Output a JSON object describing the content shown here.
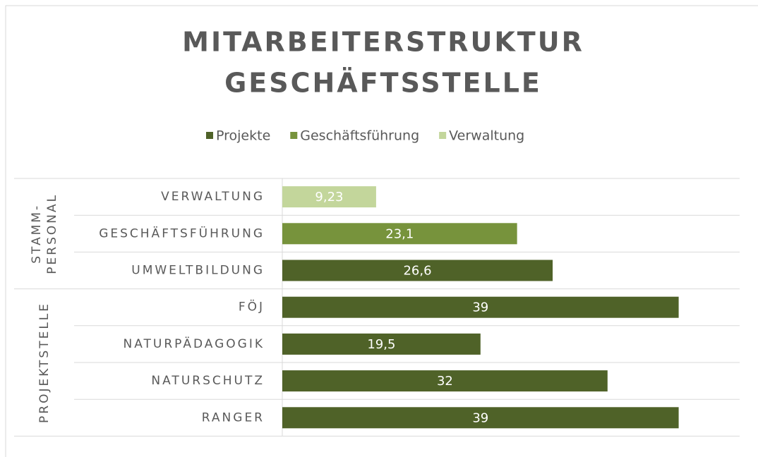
{
  "chart_data": {
    "type": "bar",
    "orientation": "horizontal",
    "title": [
      "MITARBEITERSTRUKTUR",
      "GESCHÄFTSSTELLE"
    ],
    "categories": [
      "VERWALTUNG",
      "GESCHÄFTSFÜHRUNG",
      "UMWELTBILDUNG",
      "FÖJ",
      "NATURPÄDAGOGIK",
      "NATURSCHUTZ",
      "RANGER"
    ],
    "groups": [
      {
        "label": [
          "STAMM-",
          "PERSONAL"
        ],
        "size": 3
      },
      {
        "label": [
          "PROJEKTSTELLE"
        ],
        "size": 4
      }
    ],
    "series": [
      {
        "name": "Projekte",
        "color": "#4f6228",
        "values": [
          null,
          null,
          26.6,
          39,
          19.5,
          32,
          39
        ],
        "value_labels": [
          null,
          null,
          "26,6",
          "39",
          "19,5",
          "32",
          "39"
        ]
      },
      {
        "name": "Geschäftsführung",
        "color": "#77933c",
        "values": [
          null,
          23.1,
          null,
          null,
          null,
          null,
          null
        ],
        "value_labels": [
          null,
          "23,1",
          null,
          null,
          null,
          null,
          null
        ]
      },
      {
        "name": "Verwaltung",
        "color": "#c3d69b",
        "values": [
          9.23,
          null,
          null,
          null,
          null,
          null,
          null
        ],
        "value_labels": [
          "9,23",
          null,
          null,
          null,
          null,
          null,
          null
        ]
      }
    ],
    "xlim": [
      0,
      45
    ],
    "legend": "top"
  }
}
